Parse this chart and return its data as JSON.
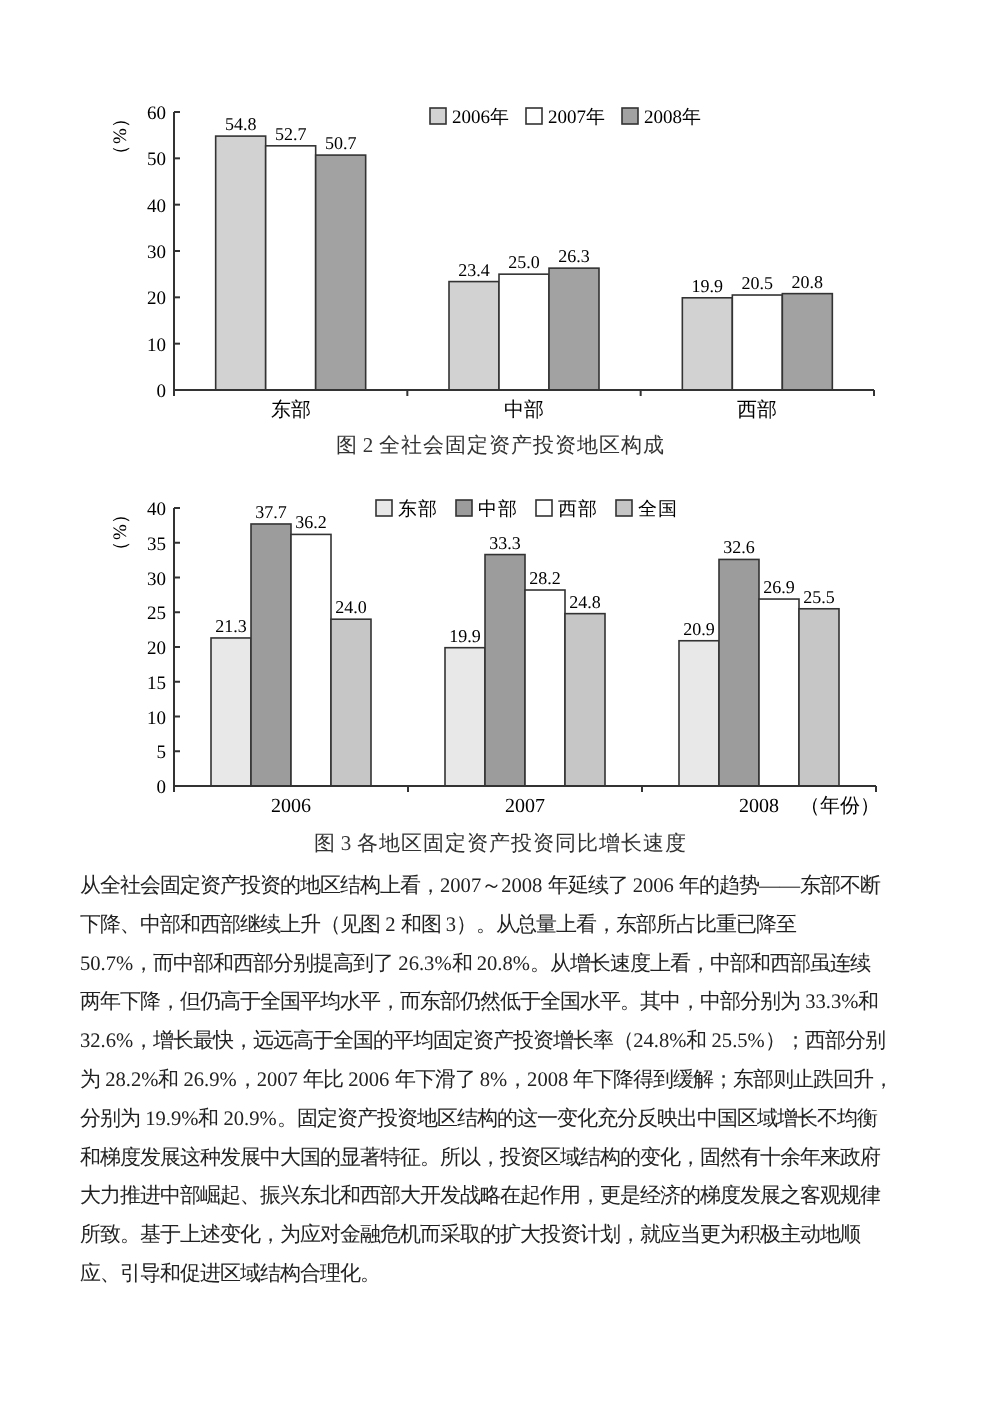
{
  "chart_data": [
    {
      "type": "bar",
      "title": "图 2  全社会固定资产投资地区构成",
      "ylabel": "（%）",
      "categories": [
        "东部",
        "中部",
        "西部"
      ],
      "series": [
        {
          "name": "2006年",
          "color": "#d2d2d2",
          "values": [
            54.8,
            23.4,
            19.9
          ],
          "value_labels": [
            "54.8",
            "23.4",
            "19.9"
          ]
        },
        {
          "name": "2007年",
          "color": "#ffffff",
          "values": [
            52.7,
            25.0,
            20.5
          ],
          "value_labels": [
            "52.7",
            "25.0",
            "20.5"
          ]
        },
        {
          "name": "2008年",
          "color": "#a2a2a2",
          "values": [
            50.7,
            26.3,
            20.8
          ],
          "value_labels": [
            "50.7",
            "26.3",
            "20.8"
          ]
        }
      ],
      "ylim": [
        0,
        60
      ],
      "yticks": [
        0,
        10,
        20,
        30,
        40,
        50,
        60
      ],
      "legend": "top",
      "grid": false
    },
    {
      "type": "bar",
      "title": "图 3  各地区固定资产投资同比增长速度",
      "ylabel": "（%）",
      "xlabel": "（年份）",
      "categories": [
        "2006",
        "2007",
        "2008"
      ],
      "series": [
        {
          "name": "东部",
          "color": "#e8e8e8",
          "values": [
            21.3,
            19.9,
            20.9
          ],
          "value_labels": [
            "21.3",
            "19.9",
            "20.9"
          ]
        },
        {
          "name": "中部",
          "color": "#9c9c9c",
          "values": [
            37.7,
            33.3,
            32.6
          ],
          "value_labels": [
            "37.7",
            "33.3",
            "32.6"
          ]
        },
        {
          "name": "西部",
          "color": "#ffffff",
          "values": [
            36.2,
            28.2,
            26.9
          ],
          "value_labels": [
            "36.2",
            "28.2",
            "26.9"
          ]
        },
        {
          "name": "全国",
          "color": "#c6c6c6",
          "values": [
            24.0,
            24.8,
            25.5
          ],
          "value_labels": [
            "24.0",
            "24.8",
            "25.5"
          ]
        }
      ],
      "ylim": [
        0,
        40
      ],
      "yticks": [
        0,
        5,
        10,
        15,
        20,
        25,
        30,
        35,
        40
      ],
      "legend": "top",
      "grid": false
    },
    {
      "type": "other",
      "annotations": [
        "从全社会固定资产投资的地区结构上看，2007～2008 年延续了 2006 年的趋势——东部不断",
        "下降、中部和西部继续上升（见图 2 和图 3）。从总量上看，东部所占比重已降至",
        "50.7%，而中部和西部分别提高到了 26.3%和 20.8%。从增长速度上看，中部和西部虽连续",
        "两年下降，但仍高于全国平均水平，而东部仍然低于全国水平。其中，中部分别为 33.3%和",
        "32.6%，增长最快，远远高于全国的平均固定资产投资增长率（24.8%和 25.5%）；西部分别",
        "为 28.2%和 26.9%，2007 年比 2006 年下滑了 8%，2008 年下降得到缓解；东部则止跌回升，",
        "分别为 19.9%和 20.9%。固定资产投资地区结构的这一变化充分反映出中国区域增长不均衡",
        "和梯度发展这种发展中大国的显著特征。所以，投资区域结构的变化，固然有十余年来政府",
        "大力推进中部崛起、振兴东北和西部大开发战略在起作用，更是经济的梯度发展之客观规律",
        "所致。基于上述变化，为应对金融危机而采取的扩大投资计划，就应当更为积极主动地顺",
        "应、引导和促进区域结构合理化。"
      ]
    }
  ]
}
